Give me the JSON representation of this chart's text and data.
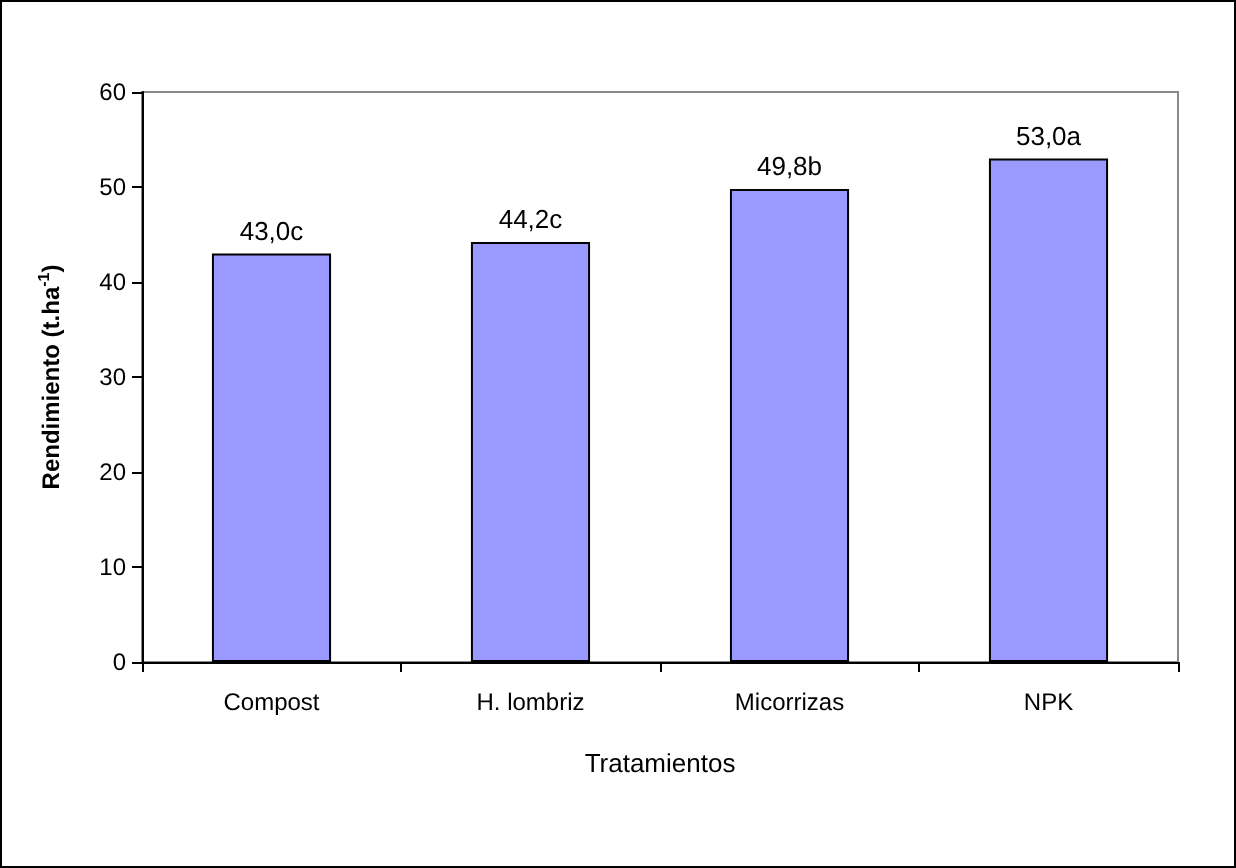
{
  "chart_data": {
    "type": "bar",
    "xlabel": "Tratamientos",
    "ylabel": "Rendimiento (t.ha$^{-1}$)",
    "categories": [
      "Compost",
      "H. lombriz",
      "Micorrizas",
      "NPK"
    ],
    "values": [
      43.0,
      44.2,
      49.8,
      53.0
    ],
    "value_labels": [
      "43,0c",
      "44,2c",
      "49,8b",
      "53,0a"
    ],
    "color": "#9999ff",
    "ylim": [
      0,
      60
    ],
    "yticks": [
      0,
      10,
      20,
      30,
      40,
      50,
      60
    ],
    "grid": false
  }
}
